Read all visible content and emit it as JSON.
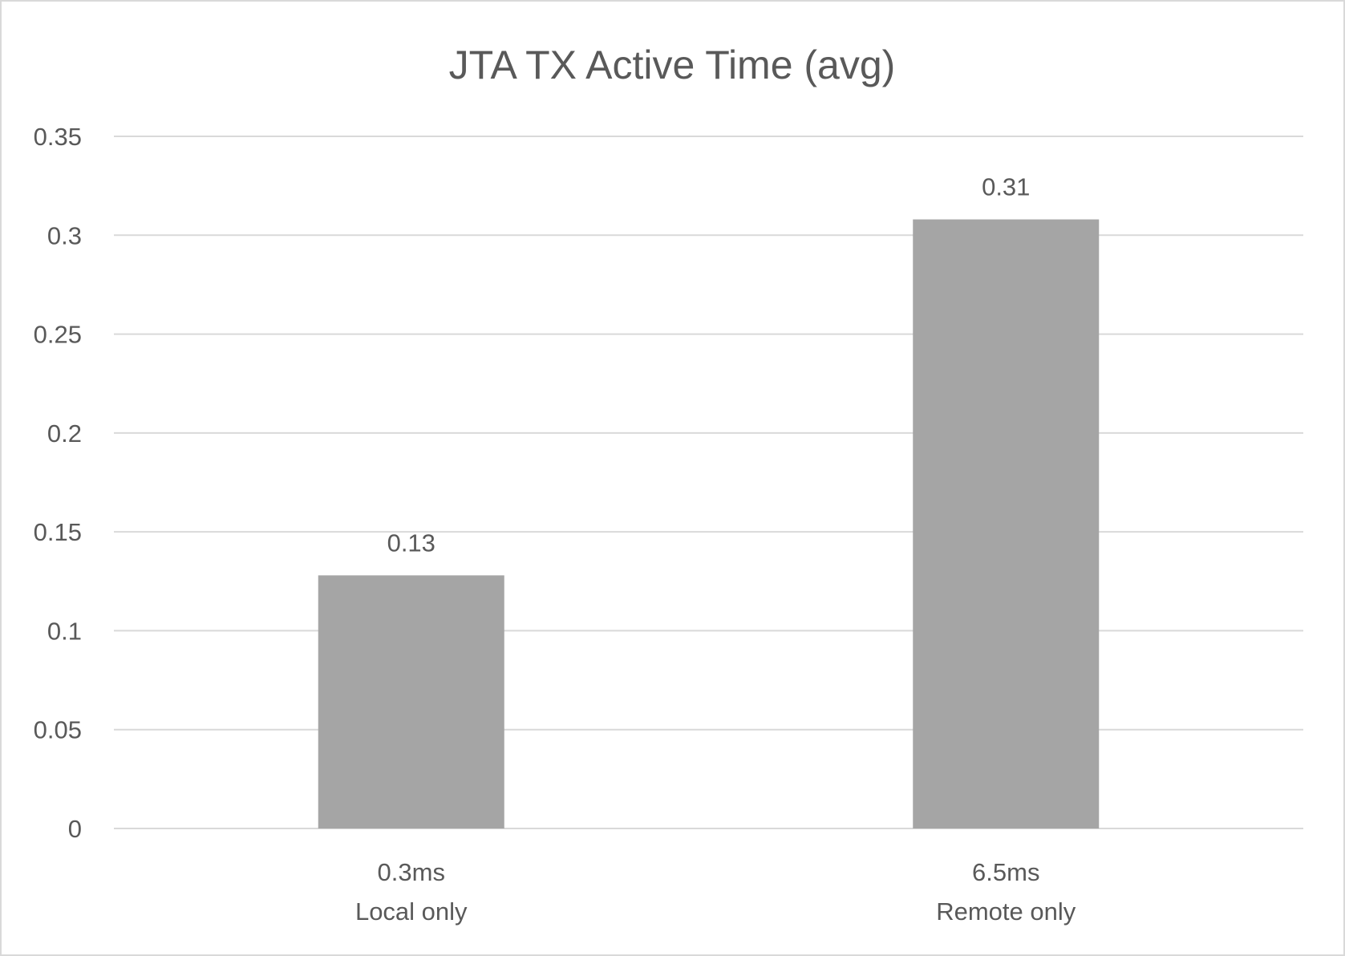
{
  "chart_data": {
    "type": "bar",
    "title": "JTA TX Active Time (avg)",
    "categories": [
      [
        "0.3ms",
        "Local only"
      ],
      [
        "6.5ms",
        "Remote only"
      ]
    ],
    "values": [
      0.128,
      0.308
    ],
    "data_labels": [
      "0.13",
      "0.31"
    ],
    "ylim": [
      0,
      0.35
    ],
    "yticks": [
      "0",
      "0.05",
      "0.1",
      "0.15",
      "0.2",
      "0.25",
      "0.3",
      "0.35"
    ],
    "grid": true,
    "legend": "none",
    "bar_color": "#a5a5a5",
    "grid_color": "#d9d9d9",
    "text_color": "#595959"
  }
}
